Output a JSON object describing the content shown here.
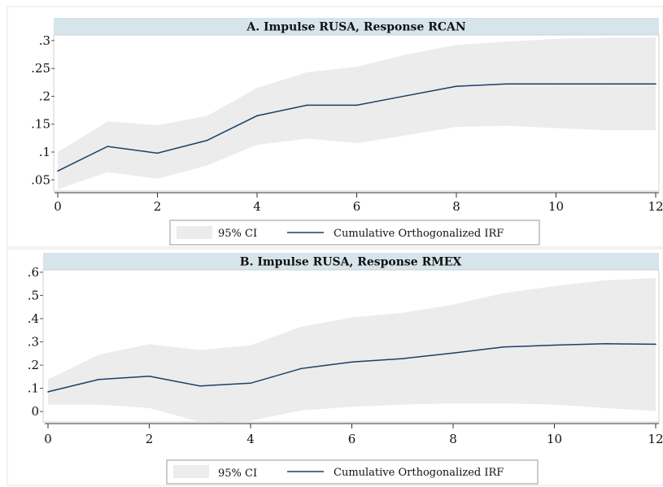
{
  "colors": {
    "title_band": "#d6e4ec",
    "ci_fill": "#ececec",
    "line": "#1b3f66",
    "panel_border": "#d0d0d0"
  },
  "legend": {
    "ci_label": "95% CI",
    "line_label": "Cumulative Orthogonalized IRF"
  },
  "chart_data": [
    {
      "type": "line",
      "title": "A. Impulse RUSA, Response RCAN",
      "xlabel": "",
      "ylabel": "",
      "x": [
        0,
        1,
        2,
        3,
        4,
        5,
        6,
        7,
        8,
        9,
        10,
        11,
        12
      ],
      "xlim": [
        0,
        12
      ],
      "ylim": [
        0.03,
        0.31
      ],
      "x_ticks": [
        0,
        2,
        4,
        6,
        8,
        10,
        12
      ],
      "x_tick_labels": [
        "0",
        "2",
        "4",
        "6",
        "8",
        "10",
        "12"
      ],
      "y_ticks": [
        0.05,
        0.1,
        0.15,
        0.2,
        0.25,
        0.3
      ],
      "y_tick_labels": [
        ".05",
        ".1",
        ".15",
        ".2",
        ".25",
        ".3"
      ],
      "grid": false,
      "legend_position": "bottom",
      "series": [
        {
          "name": "Cumulative Orthogonalized IRF",
          "values": [
            0.066,
            0.11,
            0.098,
            0.121,
            0.165,
            0.184,
            0.184,
            0.201,
            0.218,
            0.222,
            0.222,
            0.222,
            0.222
          ]
        }
      ],
      "ci_upper": [
        0.1,
        0.155,
        0.148,
        0.165,
        0.215,
        0.243,
        0.253,
        0.275,
        0.292,
        0.298,
        0.303,
        0.305,
        0.306
      ],
      "ci_lower": [
        0.033,
        0.064,
        0.052,
        0.076,
        0.113,
        0.124,
        0.116,
        0.13,
        0.145,
        0.147,
        0.143,
        0.139,
        0.139
      ]
    },
    {
      "type": "line",
      "title": "B. Impulse RUSA, Response RMEX",
      "xlabel": "",
      "ylabel": "",
      "x": [
        0,
        1,
        2,
        3,
        4,
        5,
        6,
        7,
        8,
        9,
        10,
        11,
        12
      ],
      "xlim": [
        0,
        12
      ],
      "ylim": [
        -0.045,
        0.61
      ],
      "x_ticks": [
        0,
        2,
        4,
        6,
        8,
        10,
        12
      ],
      "x_tick_labels": [
        "0",
        "2",
        "4",
        "6",
        "8",
        "10",
        "12"
      ],
      "y_ticks": [
        0,
        0.1,
        0.2,
        0.3,
        0.4,
        0.5,
        0.6
      ],
      "y_tick_labels": [
        "0",
        ".1",
        ".2",
        ".3",
        ".4",
        ".5",
        ".6"
      ],
      "grid": false,
      "legend_position": "bottom",
      "series": [
        {
          "name": "Cumulative Orthogonalized IRF",
          "values": [
            0.085,
            0.138,
            0.152,
            0.11,
            0.122,
            0.185,
            0.213,
            0.228,
            0.252,
            0.278,
            0.286,
            0.292,
            0.29
          ]
        }
      ],
      "ci_upper": [
        0.138,
        0.245,
        0.29,
        0.265,
        0.285,
        0.365,
        0.405,
        0.425,
        0.46,
        0.51,
        0.54,
        0.565,
        0.575
      ],
      "ci_lower": [
        0.03,
        0.03,
        0.015,
        -0.045,
        -0.04,
        0.005,
        0.02,
        0.03,
        0.035,
        0.035,
        0.03,
        0.015,
        0.002
      ]
    }
  ]
}
